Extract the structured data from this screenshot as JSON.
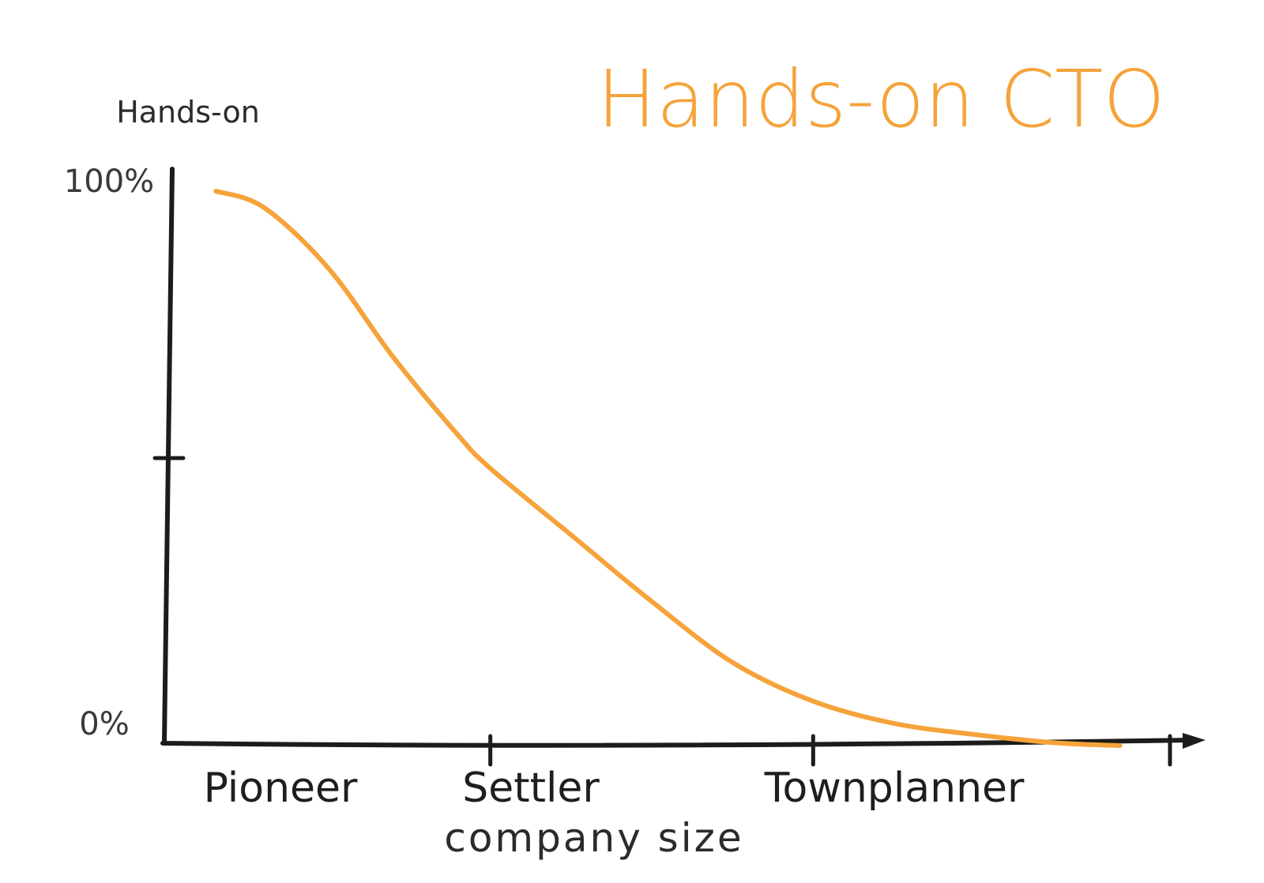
{
  "chart_data": {
    "type": "line",
    "title": "Hands-on CTO",
    "ylabel": "Hands-on",
    "xlabel": "company size",
    "y_tick_labels": [
      "100%",
      "0%"
    ],
    "ylim": [
      0,
      100
    ],
    "xlim": [
      0,
      3
    ],
    "categories": [
      "Pioneer",
      "Settler",
      "Townplanner"
    ],
    "grid": false,
    "legend": "none",
    "series": [
      {
        "x": [
          0.15,
          0.3,
          0.5,
          0.7,
          0.9,
          1.0,
          1.25,
          1.5,
          1.75,
          2.0,
          2.25,
          2.5,
          2.75,
          2.95
        ],
        "y": [
          100,
          97,
          86,
          70,
          56,
          50,
          38,
          26,
          15,
          8,
          4,
          2,
          0.5,
          0
        ]
      }
    ],
    "colors": {
      "curve": "#f5a33a",
      "title": "#f5a33a",
      "axis": "#1c1c1c"
    }
  }
}
